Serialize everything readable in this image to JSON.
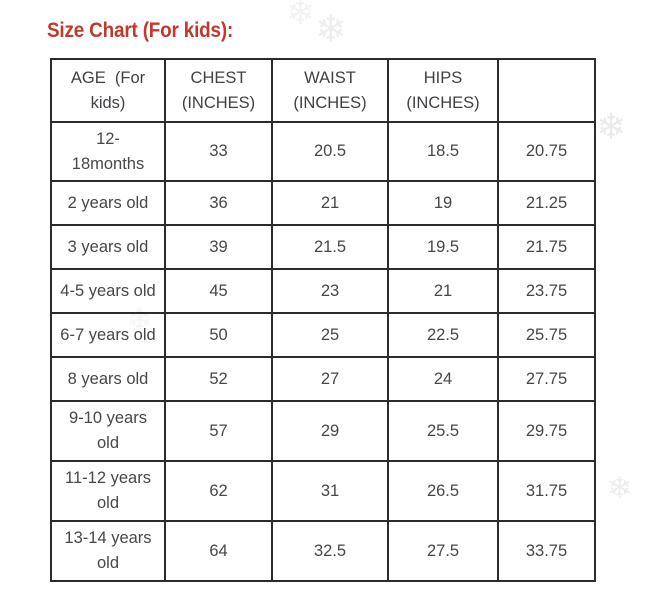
{
  "page": {
    "background_color": "#ffffff",
    "border_color": "#2b2b2b",
    "text_color": "#474747"
  },
  "title": {
    "text": "Size Chart (For kids):",
    "color": "#c0392b"
  },
  "decor": {
    "snowflake_glyph": "❄",
    "snowflake_color": "#ededed"
  },
  "size_table": {
    "headers": [
      "AGE  (For\nkids)",
      "CHEST\n(INCHES)",
      "WAIST\n(INCHES)",
      "HIPS\n(INCHES)",
      ""
    ],
    "rows": [
      {
        "cells": [
          "12-\n18months",
          "33",
          "20.5",
          "18.5",
          "20.75"
        ]
      },
      {
        "cells": [
          "2 years old",
          "36",
          "21",
          "19",
          "21.25"
        ]
      },
      {
        "cells": [
          "3 years old",
          "39",
          "21.5",
          "19.5",
          "21.75"
        ]
      },
      {
        "cells": [
          "4-5 years old",
          "45",
          "23",
          "21",
          "23.75"
        ]
      },
      {
        "cells": [
          "6-7 years old",
          "50",
          "25",
          "22.5",
          "25.75"
        ]
      },
      {
        "cells": [
          "8 years old",
          "52",
          "27",
          "24",
          "27.75"
        ]
      },
      {
        "cells": [
          "9-10 years\nold",
          "57",
          "29",
          "25.5",
          "29.75"
        ]
      },
      {
        "cells": [
          "11-12 years\nold",
          "62",
          "31",
          "26.5",
          "31.75"
        ]
      },
      {
        "cells": [
          "13-14 years\nold",
          "64",
          "32.5",
          "27.5",
          "33.75"
        ]
      }
    ]
  }
}
